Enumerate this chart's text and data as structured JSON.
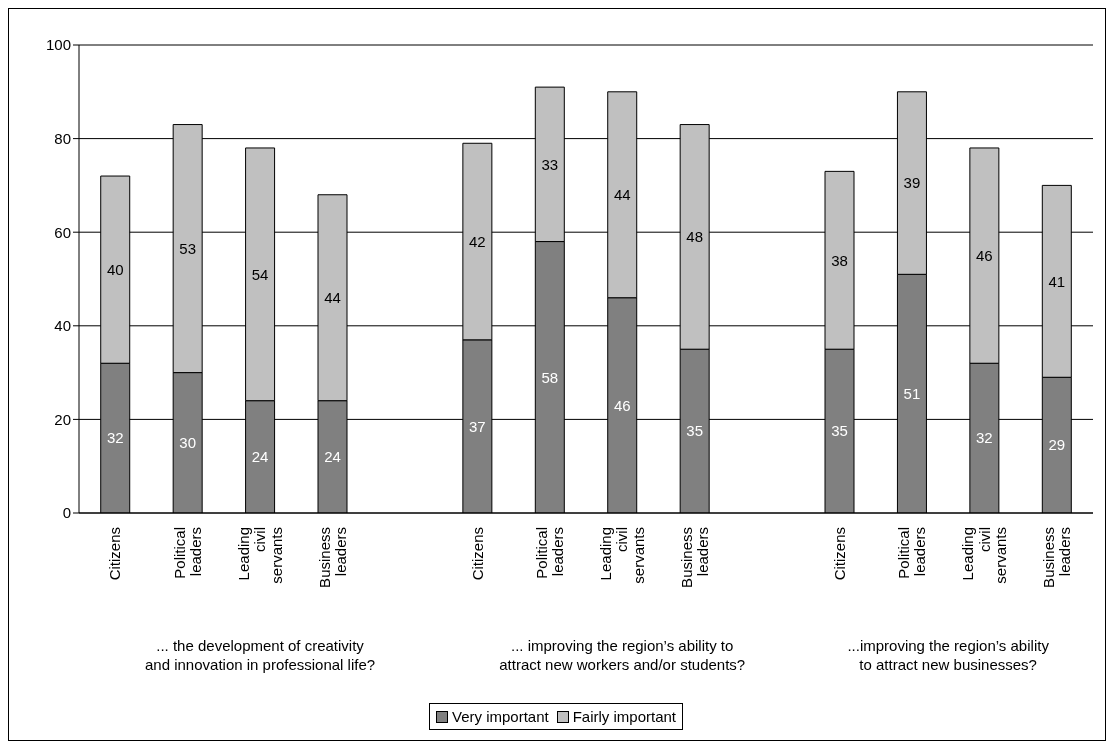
{
  "chart_data": {
    "type": "bar",
    "stacked": true,
    "categories": [
      "Citizens",
      "Political leaders",
      "Leading civil servants",
      "Business leaders",
      null,
      "Citizens",
      "Political leaders",
      "Leading civil servants",
      "Business leaders",
      null,
      "Citizens",
      "Political leaders",
      "Leading civil servants",
      "Business leaders"
    ],
    "series": [
      {
        "name": "Very important",
        "color": "#808080",
        "values": [
          32,
          30,
          24,
          24,
          null,
          37,
          58,
          46,
          35,
          null,
          35,
          51,
          32,
          29
        ]
      },
      {
        "name": "Fairly important",
        "color": "#c0c0c0",
        "values": [
          40,
          53,
          54,
          44,
          null,
          42,
          33,
          44,
          48,
          null,
          38,
          39,
          46,
          41
        ]
      }
    ],
    "annotations": [
      "... the development of creativity and innovation in professional life?",
      "... improving the region’s ability to attract new workers and/or students?",
      "...improving the region’s ability to attract new businesses?"
    ],
    "ylim": [
      0,
      100
    ],
    "yticks": [
      0,
      20,
      40,
      60,
      80,
      100
    ],
    "grid": "y",
    "legend": "bottom",
    "data_labels": true
  }
}
